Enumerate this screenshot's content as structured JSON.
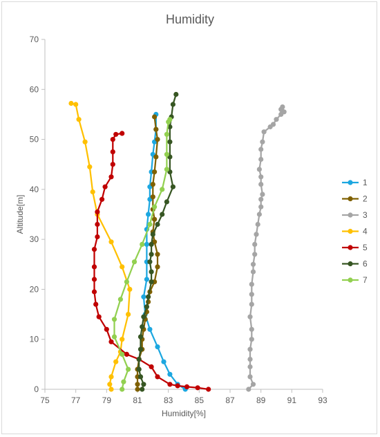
{
  "chart_data": {
    "type": "scatter",
    "title": "Humidity",
    "xlabel": "Humidity[%]",
    "ylabel": "Altitude[m]",
    "xlim": [
      75,
      93
    ],
    "ylim": [
      0,
      70
    ],
    "xticks": [
      "75",
      "77",
      "79",
      "81",
      "83",
      "85",
      "87",
      "89",
      "91",
      "93"
    ],
    "yticks": [
      "0",
      "10",
      "20",
      "30",
      "40",
      "50",
      "60",
      "70"
    ],
    "grid": false,
    "legend_position": "right",
    "series": [
      {
        "name": "1",
        "color": "#1ca7e0",
        "points": [
          [
            84.1,
            0
          ],
          [
            83.6,
            1
          ],
          [
            83.1,
            3
          ],
          [
            82.7,
            5.5
          ],
          [
            82.3,
            8.5
          ],
          [
            81.8,
            12
          ],
          [
            81.5,
            15
          ],
          [
            81.4,
            18.5
          ],
          [
            81.6,
            22
          ],
          [
            81.6,
            25.5
          ],
          [
            81.6,
            29
          ],
          [
            81.6,
            32
          ],
          [
            81.7,
            35
          ],
          [
            81.8,
            38
          ],
          [
            81.8,
            40.5
          ],
          [
            81.9,
            43.5
          ],
          [
            82.0,
            47
          ],
          [
            82.1,
            49.5
          ],
          [
            82.2,
            52
          ],
          [
            82.2,
            55
          ]
        ]
      },
      {
        "name": "2",
        "color": "#7f6000",
        "points": [
          [
            81.0,
            0
          ],
          [
            81.0,
            1
          ],
          [
            81.0,
            2.5
          ],
          [
            81.0,
            4
          ],
          [
            81.1,
            6
          ],
          [
            81.3,
            8
          ],
          [
            81.3,
            10
          ],
          [
            81.4,
            12
          ],
          [
            81.5,
            14
          ],
          [
            81.6,
            15.5
          ],
          [
            81.7,
            17.5
          ],
          [
            81.8,
            19.5
          ],
          [
            82.1,
            21.5
          ],
          [
            82.3,
            24.5
          ],
          [
            82.3,
            27
          ],
          [
            82.1,
            29.5
          ],
          [
            82.0,
            31.5
          ],
          [
            82.1,
            34
          ],
          [
            82.0,
            36
          ],
          [
            82.0,
            38.5
          ],
          [
            82.0,
            41
          ],
          [
            82.1,
            43.5
          ],
          [
            82.2,
            46.5
          ],
          [
            82.3,
            50
          ],
          [
            82.2,
            52
          ],
          [
            82.1,
            54.5
          ]
        ]
      },
      {
        "name": "3",
        "color": "#a5a5a5",
        "points": [
          [
            88.2,
            0
          ],
          [
            88.5,
            1
          ],
          [
            88.3,
            2.5
          ],
          [
            88.3,
            4.5
          ],
          [
            88.3,
            6
          ],
          [
            88.3,
            8
          ],
          [
            88.4,
            10
          ],
          [
            88.4,
            12
          ],
          [
            88.3,
            14.5
          ],
          [
            88.4,
            17
          ],
          [
            88.4,
            19
          ],
          [
            88.4,
            21
          ],
          [
            88.5,
            23.5
          ],
          [
            88.5,
            25
          ],
          [
            88.6,
            27
          ],
          [
            88.6,
            29
          ],
          [
            88.7,
            31
          ],
          [
            88.8,
            33
          ],
          [
            88.9,
            35
          ],
          [
            89.0,
            36.5
          ],
          [
            89.0,
            38
          ],
          [
            89.1,
            39
          ],
          [
            89.0,
            41
          ],
          [
            89.0,
            42.5
          ],
          [
            88.9,
            44
          ],
          [
            89.0,
            46
          ],
          [
            89.0,
            48
          ],
          [
            89.1,
            49.5
          ],
          [
            89.2,
            51.5
          ],
          [
            89.6,
            52.5
          ],
          [
            89.8,
            53
          ],
          [
            90.0,
            54
          ],
          [
            90.3,
            55
          ],
          [
            90.4,
            55.5
          ],
          [
            90.3,
            56
          ],
          [
            90.5,
            55.5
          ],
          [
            90.4,
            56.5
          ]
        ]
      },
      {
        "name": "4",
        "color": "#ffc000",
        "points": [
          [
            79.3,
            0
          ],
          [
            79.2,
            1
          ],
          [
            79.3,
            2.5
          ],
          [
            79.6,
            5.5
          ],
          [
            79.9,
            7.5
          ],
          [
            80.0,
            10
          ],
          [
            80.4,
            15
          ],
          [
            80.5,
            20
          ],
          [
            80.0,
            24.5
          ],
          [
            79.3,
            29.5
          ],
          [
            78.4,
            35
          ],
          [
            78.1,
            39.5
          ],
          [
            77.9,
            44.5
          ],
          [
            77.6,
            49.5
          ],
          [
            77.2,
            54
          ],
          [
            77.0,
            57
          ],
          [
            76.7,
            57.2
          ]
        ]
      },
      {
        "name": "5",
        "color": "#c00000",
        "points": [
          [
            85.6,
            0
          ],
          [
            84.9,
            0.3
          ],
          [
            84.2,
            0.5
          ],
          [
            83.6,
            0.7
          ],
          [
            83.1,
            1
          ],
          [
            82.3,
            2.5
          ],
          [
            81.9,
            4.5
          ],
          [
            81.1,
            6
          ],
          [
            80.3,
            7
          ],
          [
            79.3,
            9.5
          ],
          [
            79.0,
            12
          ],
          [
            78.5,
            14.5
          ],
          [
            78.3,
            17
          ],
          [
            78.2,
            19.5
          ],
          [
            78.2,
            22
          ],
          [
            78.2,
            24.5
          ],
          [
            78.2,
            28
          ],
          [
            78.4,
            30.5
          ],
          [
            78.4,
            33
          ],
          [
            78.4,
            35.5
          ],
          [
            78.7,
            38
          ],
          [
            78.9,
            40.5
          ],
          [
            79.3,
            42.5
          ],
          [
            79.4,
            45
          ],
          [
            79.4,
            47.5
          ],
          [
            79.4,
            50
          ],
          [
            79.6,
            51
          ],
          [
            80.0,
            51.2
          ]
        ]
      },
      {
        "name": "6",
        "color": "#375623",
        "points": [
          [
            81.3,
            0
          ],
          [
            81.4,
            1
          ],
          [
            81.2,
            2.5
          ],
          [
            81.1,
            4
          ],
          [
            81.1,
            6
          ],
          [
            81.2,
            8
          ],
          [
            81.2,
            10.5
          ],
          [
            81.3,
            12.5
          ],
          [
            81.4,
            14.5
          ],
          [
            81.6,
            16.5
          ],
          [
            81.7,
            18.5
          ],
          [
            81.9,
            21.5
          ],
          [
            81.9,
            23.5
          ],
          [
            81.8,
            25.5
          ],
          [
            81.9,
            27
          ],
          [
            81.9,
            29
          ],
          [
            82.0,
            31
          ],
          [
            82.3,
            33
          ],
          [
            82.6,
            35
          ],
          [
            82.9,
            37.5
          ],
          [
            83.3,
            40.5
          ],
          [
            83.1,
            43.5
          ],
          [
            83.1,
            46.5
          ],
          [
            83.1,
            49.5
          ],
          [
            83.1,
            52.5
          ],
          [
            83.2,
            54.5
          ],
          [
            83.3,
            57
          ],
          [
            83.5,
            59
          ]
        ]
      },
      {
        "name": "7",
        "color": "#92d050",
        "points": [
          [
            80.0,
            0
          ],
          [
            80.1,
            1.5
          ],
          [
            80.4,
            4
          ],
          [
            80.0,
            7
          ],
          [
            79.5,
            10.5
          ],
          [
            79.5,
            14
          ],
          [
            79.9,
            18
          ],
          [
            80.3,
            21.5
          ],
          [
            80.8,
            25.5
          ],
          [
            81.3,
            29
          ],
          [
            81.8,
            33
          ],
          [
            82.1,
            36.5
          ],
          [
            82.6,
            40
          ],
          [
            82.9,
            44
          ],
          [
            82.9,
            47
          ],
          [
            82.9,
            51
          ],
          [
            83.0,
            53.5
          ],
          [
            83.1,
            54
          ]
        ]
      }
    ]
  }
}
